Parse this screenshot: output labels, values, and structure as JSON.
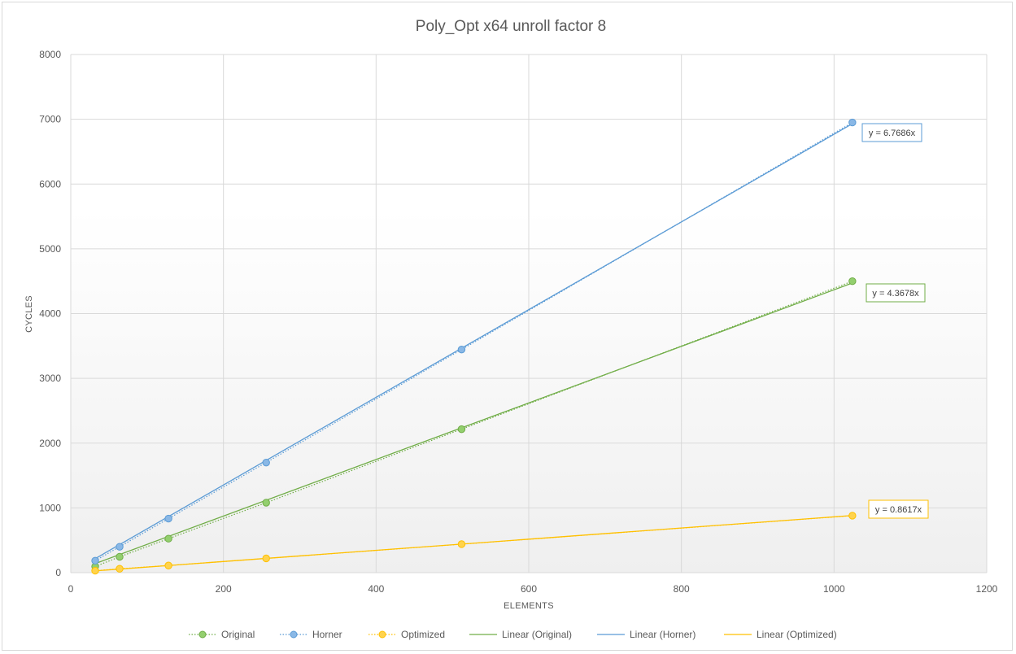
{
  "chart_data": {
    "type": "scatter",
    "title": "Poly_Opt x64 unroll factor 8",
    "xlabel": "ELEMENTS",
    "ylabel": "CYCLES",
    "xlim": [
      0,
      1200
    ],
    "ylim": [
      0,
      8000
    ],
    "x_ticks": [
      0,
      200,
      400,
      600,
      800,
      1000,
      1200
    ],
    "y_ticks": [
      0,
      1000,
      2000,
      3000,
      4000,
      5000,
      6000,
      7000,
      8000
    ],
    "grid": true,
    "legend_position": "bottom",
    "x": [
      32,
      64,
      128,
      256,
      512,
      1024
    ],
    "series": [
      {
        "name": "Original",
        "color": "#70ad47",
        "marker_fill": "#93cf6e",
        "values": [
          95,
          245,
          525,
          1080,
          2215,
          4500
        ]
      },
      {
        "name": "Horner",
        "color": "#5b9bd5",
        "marker_fill": "#8ab8e6",
        "values": [
          185,
          400,
          835,
          1700,
          3445,
          6950
        ]
      },
      {
        "name": "Optimized",
        "color": "#ffc000",
        "marker_fill": "#ffd34d",
        "values": [
          30,
          60,
          110,
          220,
          440,
          880
        ]
      }
    ],
    "trendlines": [
      {
        "name": "Linear (Original)",
        "color": "#70ad47",
        "slope": 4.3678,
        "label": "y = 4.3678x"
      },
      {
        "name": "Linear (Horner)",
        "color": "#5b9bd5",
        "slope": 6.7686,
        "label": "y = 6.7686x"
      },
      {
        "name": "Linear (Optimized)",
        "color": "#ffc000",
        "slope": 0.8617,
        "label": "y = 0.8617x"
      }
    ]
  }
}
